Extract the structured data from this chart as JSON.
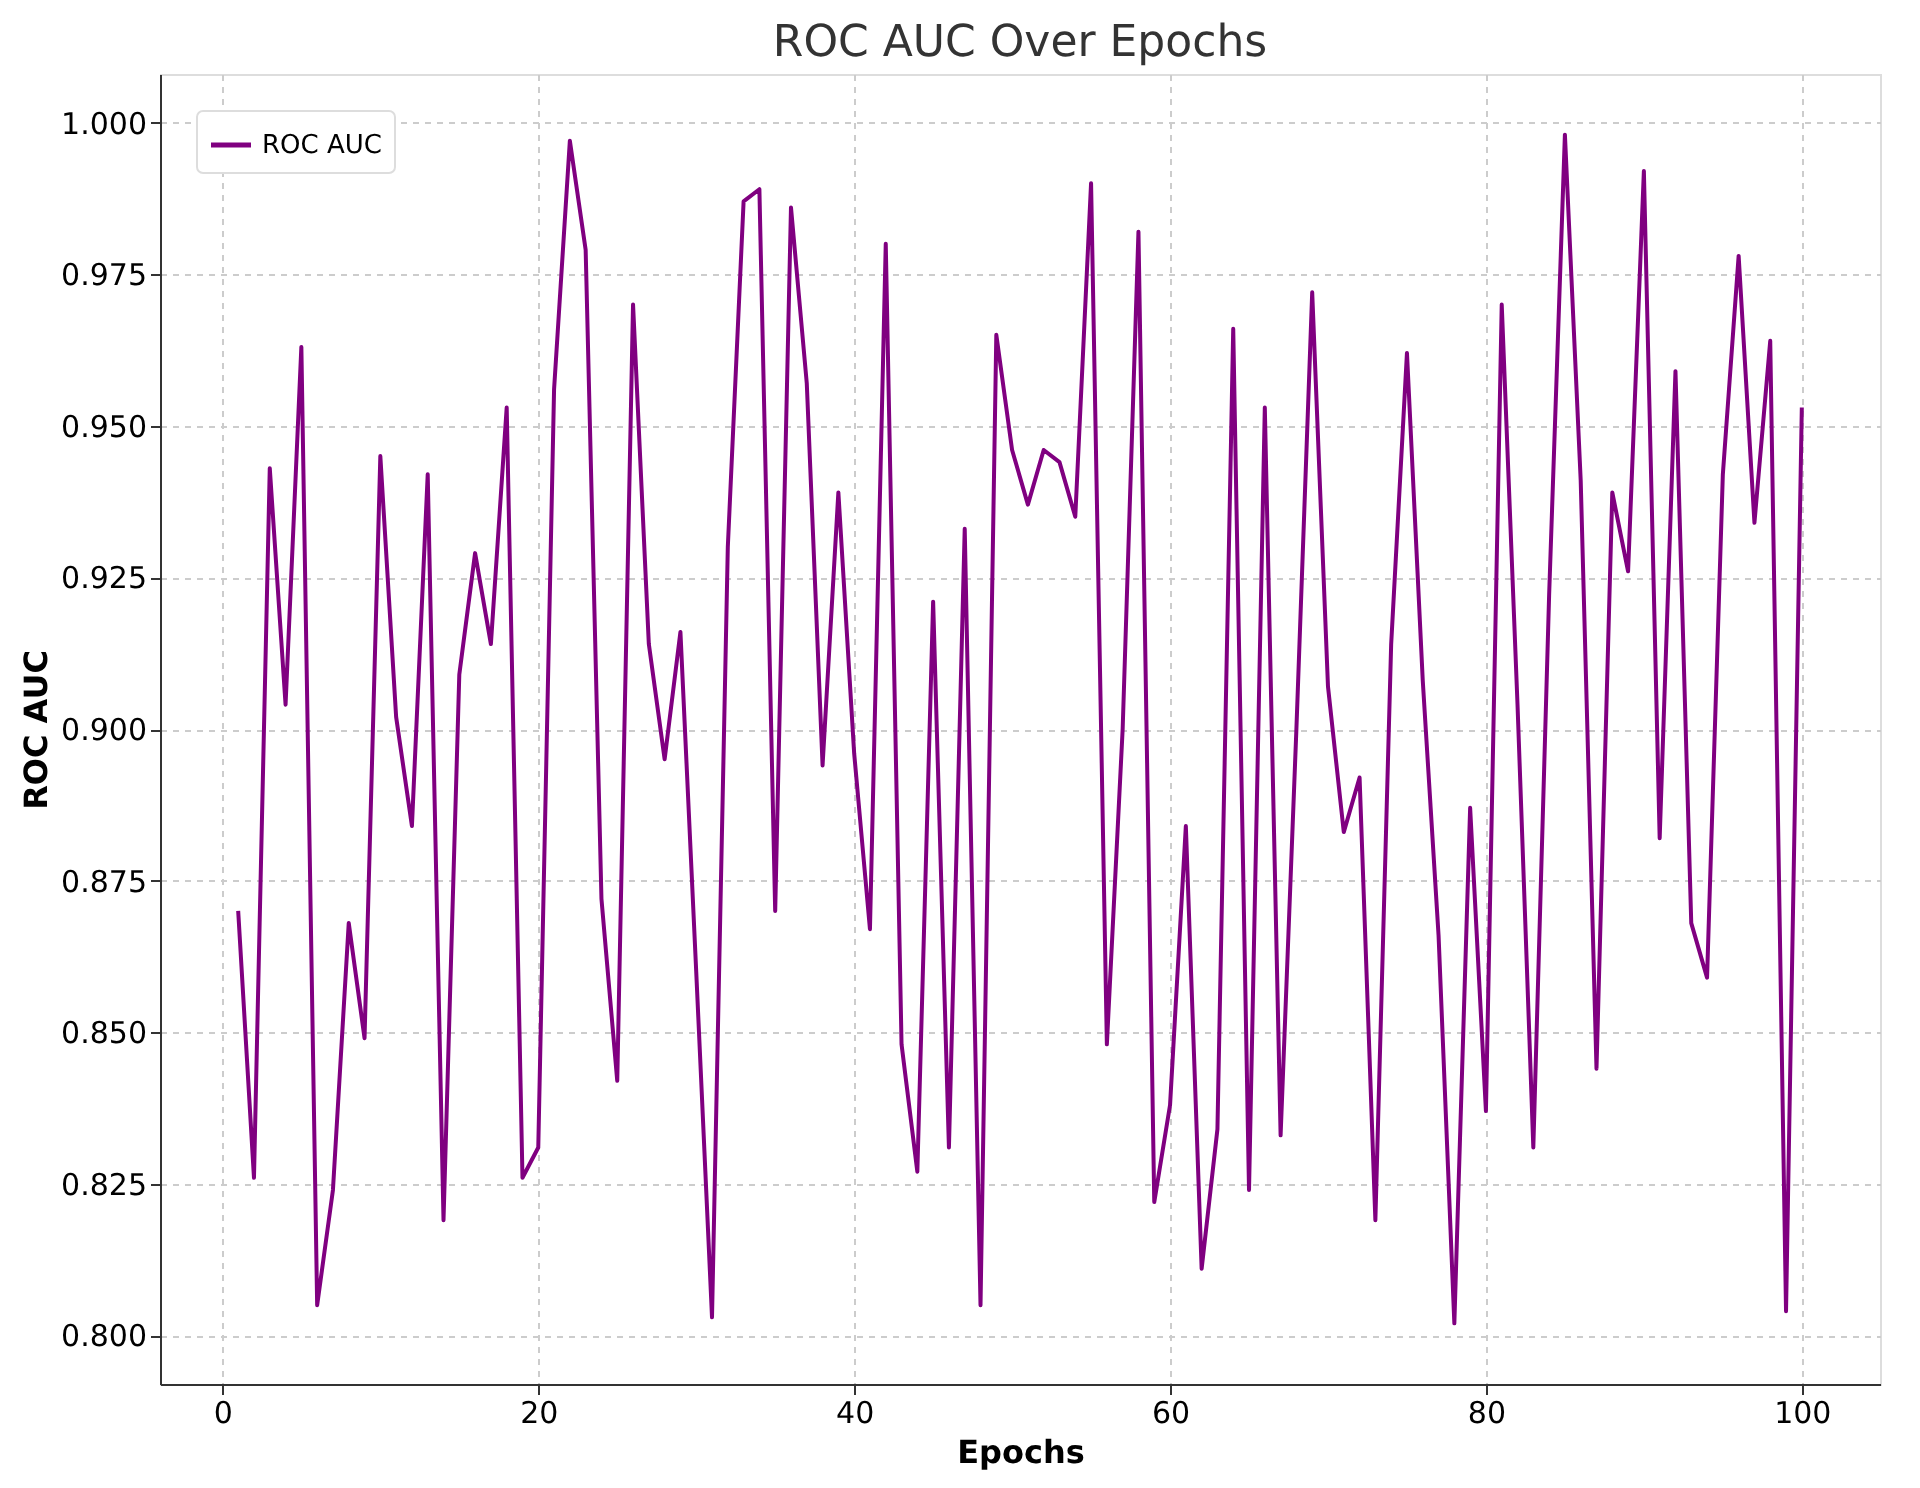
{
  "chart_data": {
    "type": "line",
    "title": "ROC AUC Over Epochs",
    "xlabel": "Epochs",
    "ylabel": "ROC AUC",
    "x": [
      1,
      2,
      3,
      4,
      5,
      6,
      7,
      8,
      9,
      10,
      11,
      12,
      13,
      14,
      15,
      16,
      17,
      18,
      19,
      20,
      21,
      22,
      23,
      24,
      25,
      26,
      27,
      28,
      29,
      30,
      31,
      32,
      33,
      34,
      35,
      36,
      37,
      38,
      39,
      40,
      41,
      42,
      43,
      44,
      45,
      46,
      47,
      48,
      49,
      50,
      51,
      52,
      53,
      54,
      55,
      56,
      57,
      58,
      59,
      60,
      61,
      62,
      63,
      64,
      65,
      66,
      67,
      68,
      69,
      70,
      71,
      72,
      73,
      74,
      75,
      76,
      77,
      78,
      79,
      80,
      81,
      82,
      83,
      84,
      85,
      86,
      87,
      88,
      89,
      90,
      91,
      92,
      93,
      94,
      95,
      96,
      97,
      98,
      99,
      100
    ],
    "series": [
      {
        "name": "ROC AUC",
        "color": "#800080",
        "values": [
          0.87,
          0.826,
          0.943,
          0.904,
          0.963,
          0.805,
          0.824,
          0.868,
          0.849,
          0.945,
          0.902,
          0.884,
          0.942,
          0.819,
          0.909,
          0.929,
          0.914,
          0.953,
          0.826,
          0.831,
          0.956,
          0.997,
          0.979,
          0.872,
          0.842,
          0.97,
          0.914,
          0.895,
          0.916,
          0.86,
          0.803,
          0.93,
          0.987,
          0.989,
          0.87,
          0.986,
          0.957,
          0.894,
          0.939,
          0.896,
          0.867,
          0.98,
          0.848,
          0.827,
          0.921,
          0.831,
          0.933,
          0.805,
          0.965,
          0.946,
          0.937,
          0.946,
          0.944,
          0.935,
          0.99,
          0.848,
          0.9,
          0.982,
          0.822,
          0.838,
          0.884,
          0.811,
          0.834,
          0.966,
          0.824,
          0.953,
          0.833,
          0.9,
          0.972,
          0.907,
          0.883,
          0.892,
          0.819,
          0.914,
          0.962,
          0.908,
          0.866,
          0.802,
          0.887,
          0.837,
          0.97,
          0.904,
          0.831,
          0.922,
          0.998,
          0.941,
          0.844,
          0.939,
          0.926,
          0.992,
          0.882,
          0.959,
          0.868,
          0.859,
          0.942,
          0.978,
          0.934,
          0.964,
          0.804,
          0.953
        ]
      }
    ],
    "xlim": [
      -3.95,
      104.95
    ],
    "xticks": [
      0,
      20,
      40,
      60,
      80,
      100
    ],
    "ylim": [
      0.792,
      1.008
    ],
    "yticks": [
      {
        "value": 0.8,
        "label": "0.800"
      },
      {
        "value": 0.825,
        "label": "0.825"
      },
      {
        "value": 0.85,
        "label": "0.850"
      },
      {
        "value": 0.875,
        "label": "0.875"
      },
      {
        "value": 0.9,
        "label": "0.900"
      },
      {
        "value": 0.925,
        "label": "0.925"
      },
      {
        "value": 0.95,
        "label": "0.950"
      },
      {
        "value": 0.975,
        "label": "0.975"
      },
      {
        "value": 1.0,
        "label": "1.000"
      }
    ],
    "grid": true,
    "legend": "top left",
    "line_style": "solid",
    "marker": "none"
  }
}
